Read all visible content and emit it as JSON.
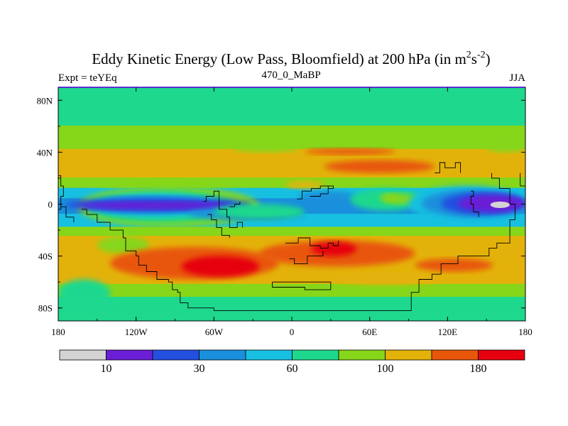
{
  "chart_data": {
    "type": "heatmap",
    "title": "Eddy Kinetic Energy (Low Pass, Bloomfield) at 200 hPa (in m",
    "title_unit_sup1": "2",
    "title_unit_mid": "s",
    "title_unit_sup2": "-2",
    "title_unit_close": ")",
    "left_string": "Expt = teYEq",
    "center_string": "470_0_MaBP",
    "right_string": "JJA",
    "xlim": [
      -180,
      180
    ],
    "ylim": [
      -90,
      90
    ],
    "x_ticks": [
      {
        "value": -180,
        "label": "180"
      },
      {
        "value": -120,
        "label": "120W"
      },
      {
        "value": -60,
        "label": "60W"
      },
      {
        "value": 0,
        "label": "0"
      },
      {
        "value": 60,
        "label": "60E"
      },
      {
        "value": 120,
        "label": "120E"
      },
      {
        "value": 180,
        "label": "180"
      }
    ],
    "y_ticks": [
      {
        "value": 80,
        "label": "80N"
      },
      {
        "value": 40,
        "label": "40N"
      },
      {
        "value": 0,
        "label": "0"
      },
      {
        "value": -40,
        "label": "40S"
      },
      {
        "value": -80,
        "label": "80S"
      }
    ],
    "colors": [
      "#d3d3d3",
      "#6a1fd6",
      "#2450e0",
      "#1a8fdc",
      "#17c0e0",
      "#1ed88e",
      "#86d61a",
      "#e3b20a",
      "#e8560a",
      "#e6000f"
    ],
    "colorbar_labels": [
      {
        "index": 1,
        "label": "10"
      },
      {
        "index": 3,
        "label": "30"
      },
      {
        "index": 5,
        "label": "60"
      },
      {
        "index": 7,
        "label": "100"
      },
      {
        "index": 9,
        "label": "180"
      }
    ],
    "zonal_bands": [
      {
        "lat": [
          60,
          90
        ],
        "level": 5
      },
      {
        "lat": [
          42,
          60
        ],
        "level": 6
      },
      {
        "lat": [
          20,
          42
        ],
        "level": 7
      },
      {
        "lat": [
          12,
          20
        ],
        "level": 6
      },
      {
        "lat": [
          4,
          12
        ],
        "level": 4
      },
      {
        "lat": [
          -8,
          4
        ],
        "level": 3
      },
      {
        "lat": [
          -18,
          -8
        ],
        "level": 4
      },
      {
        "lat": [
          -25,
          -18
        ],
        "level": 6
      },
      {
        "lat": [
          -62,
          -25
        ],
        "level": 7
      },
      {
        "lat": [
          -72,
          -62
        ],
        "level": 6
      },
      {
        "lat": [
          -90,
          -72
        ],
        "level": 5
      }
    ],
    "features": [
      {
        "level": 6,
        "lon": [
          -165,
          -25
        ],
        "lat": [
          -18,
          14
        ]
      },
      {
        "level": 5,
        "lon": [
          -160,
          -40
        ],
        "lat": [
          -14,
          10
        ]
      },
      {
        "level": 4,
        "lon": [
          -155,
          -55
        ],
        "lat": [
          -10,
          8
        ]
      },
      {
        "level": 3,
        "lon": [
          -150,
          -70
        ],
        "lat": [
          -7,
          5
        ]
      },
      {
        "level": 2,
        "lon": [
          -175,
          -30
        ],
        "lat": [
          -6,
          5
        ]
      },
      {
        "level": 1,
        "lon": [
          -165,
          -45
        ],
        "lat": [
          -4,
          2
        ]
      },
      {
        "level": 3,
        "lon": [
          -80,
          10
        ],
        "lat": [
          -12,
          -3
        ]
      },
      {
        "level": 2,
        "lon": [
          -55,
          -5
        ],
        "lat": [
          -11,
          -4
        ]
      },
      {
        "level": 3,
        "lon": [
          5,
          50
        ],
        "lat": [
          2,
          10
        ]
      },
      {
        "level": 5,
        "lon": [
          45,
          100
        ],
        "lat": [
          -5,
          12
        ]
      },
      {
        "level": 6,
        "lon": [
          70,
          95
        ],
        "lat": [
          0,
          8
        ]
      },
      {
        "level": 6,
        "lon": [
          68,
          82
        ],
        "lat": [
          2,
          8
        ]
      },
      {
        "level": 4,
        "lon": [
          90,
          180
        ],
        "lat": [
          -14,
          14
        ]
      },
      {
        "level": 3,
        "lon": [
          100,
          180
        ],
        "lat": [
          -10,
          11
        ]
      },
      {
        "level": 2,
        "lon": [
          115,
          180
        ],
        "lat": [
          -8,
          9
        ]
      },
      {
        "level": 1,
        "lon": [
          128,
          180
        ],
        "lat": [
          -6,
          7
        ]
      },
      {
        "level": 0,
        "lon": [
          153,
          168
        ],
        "lat": [
          -3,
          2
        ]
      },
      {
        "level": 5,
        "lon": [
          -60,
          10
        ],
        "lat": [
          -12,
          0
        ]
      },
      {
        "level": 6,
        "lon": [
          -150,
          -110
        ],
        "lat": [
          -38,
          -25
        ]
      },
      {
        "level": 8,
        "lon": [
          -140,
          -10
        ],
        "lat": [
          -58,
          -33
        ]
      },
      {
        "level": 9,
        "lon": [
          -85,
          -25
        ],
        "lat": [
          -56,
          -40
        ]
      },
      {
        "level": 8,
        "lon": [
          -25,
          95
        ],
        "lat": [
          -48,
          -28
        ]
      },
      {
        "level": 9,
        "lon": [
          15,
          50
        ],
        "lat": [
          -40,
          -29
        ]
      },
      {
        "level": 8,
        "lon": [
          95,
          155
        ],
        "lat": [
          -52,
          -42
        ]
      },
      {
        "level": 7,
        "lon": [
          30,
          115
        ],
        "lat": [
          -62,
          -52
        ]
      },
      {
        "level": 8,
        "lon": [
          10,
          80
        ],
        "lat": [
          38,
          43
        ]
      },
      {
        "level": 8,
        "lon": [
          25,
          110
        ],
        "lat": [
          24,
          34
        ]
      },
      {
        "level": 6,
        "lon": [
          -45,
          5
        ],
        "lat": [
          40,
          46
        ]
      },
      {
        "level": 6,
        "lon": [
          150,
          180
        ],
        "lat": [
          40,
          48
        ]
      },
      {
        "level": 5,
        "lon": [
          -180,
          -140
        ],
        "lat": [
          -80,
          -58
        ]
      },
      {
        "level": 7,
        "lon": [
          -5,
          25
        ],
        "lat": [
          12,
          18
        ]
      }
    ],
    "coastlines": [
      [
        [
          -162,
          -4
        ],
        [
          -158,
          -8
        ],
        [
          -150,
          -14
        ],
        [
          -140,
          -20
        ],
        [
          -130,
          -26
        ],
        [
          -128,
          -36
        ],
        [
          -120,
          -40
        ],
        [
          -118,
          -47
        ],
        [
          -112,
          -52
        ],
        [
          -104,
          -58
        ],
        [
          -95,
          -60
        ],
        [
          -92,
          -66
        ],
        [
          -88,
          -68
        ],
        [
          -86,
          -76
        ],
        [
          -80,
          -80
        ],
        [
          -60,
          -82
        ],
        [
          -20,
          -82
        ],
        [
          20,
          -82
        ],
        [
          50,
          -82
        ],
        [
          92,
          -82
        ],
        [
          92,
          -68
        ],
        [
          98,
          -64
        ],
        [
          98,
          -58
        ],
        [
          108,
          -54
        ],
        [
          115,
          -54
        ],
        [
          115,
          -46
        ],
        [
          128,
          -46
        ],
        [
          128,
          -40
        ],
        [
          150,
          -40
        ],
        [
          152,
          -34
        ],
        [
          158,
          -30
        ],
        [
          168,
          -24
        ],
        [
          168,
          -12
        ],
        [
          172,
          -12
        ],
        [
          172,
          0
        ],
        [
          168,
          12
        ],
        [
          160,
          20
        ],
        [
          154,
          24
        ]
      ],
      [
        [
          -180,
          22
        ],
        [
          -178,
          14
        ],
        [
          -176,
          6
        ],
        [
          -178,
          -2
        ],
        [
          -174,
          -10
        ],
        [
          -168,
          -14
        ]
      ],
      [
        [
          -68,
          2
        ],
        [
          -66,
          6
        ],
        [
          -60,
          10
        ],
        [
          -56,
          2
        ],
        [
          -56,
          -4
        ],
        [
          -50,
          -10
        ],
        [
          -48,
          -18
        ],
        [
          -42,
          -14
        ],
        [
          -38,
          -18
        ]
      ],
      [
        [
          -65,
          -8
        ],
        [
          -62,
          -12
        ],
        [
          -58,
          -18
        ],
        [
          -54,
          -24
        ],
        [
          -48,
          -26
        ]
      ],
      [
        [
          -5,
          -30
        ],
        [
          0,
          -30
        ],
        [
          5,
          -26
        ],
        [
          12,
          -26
        ],
        [
          14,
          -32
        ],
        [
          22,
          -34
        ],
        [
          28,
          -30
        ],
        [
          32,
          -32
        ],
        [
          36,
          -28
        ]
      ],
      [
        [
          -2,
          -42
        ],
        [
          2,
          -46
        ],
        [
          10,
          -46
        ],
        [
          12,
          -40
        ],
        [
          18,
          -40
        ],
        [
          24,
          -36
        ]
      ],
      [
        [
          -15,
          -60
        ],
        [
          -15,
          -64
        ],
        [
          0,
          -64
        ],
        [
          10,
          -66
        ],
        [
          30,
          -66
        ],
        [
          30,
          -60
        ],
        [
          15,
          -60
        ],
        [
          0,
          -60
        ],
        [
          -15,
          -60
        ]
      ],
      [
        [
          4,
          4
        ],
        [
          8,
          10
        ],
        [
          15,
          12
        ],
        [
          22,
          14
        ],
        [
          28,
          12
        ],
        [
          32,
          14
        ],
        [
          28,
          8
        ],
        [
          22,
          6
        ],
        [
          14,
          6
        ]
      ],
      [
        [
          110,
          24
        ],
        [
          114,
          32
        ],
        [
          118,
          28
        ],
        [
          126,
          32
        ],
        [
          130,
          24
        ]
      ],
      [
        [
          138,
          10
        ],
        [
          140,
          6
        ],
        [
          138,
          0
        ],
        [
          140,
          -6
        ],
        [
          144,
          -10
        ]
      ],
      [
        [
          180,
          14
        ],
        [
          176,
          18
        ],
        [
          176,
          24
        ]
      ],
      [
        [
          -180,
          -4
        ],
        [
          -178,
          -2
        ]
      ],
      [
        [
          -48,
          -2
        ],
        [
          -44,
          0
        ],
        [
          -40,
          2
        ]
      ]
    ]
  }
}
